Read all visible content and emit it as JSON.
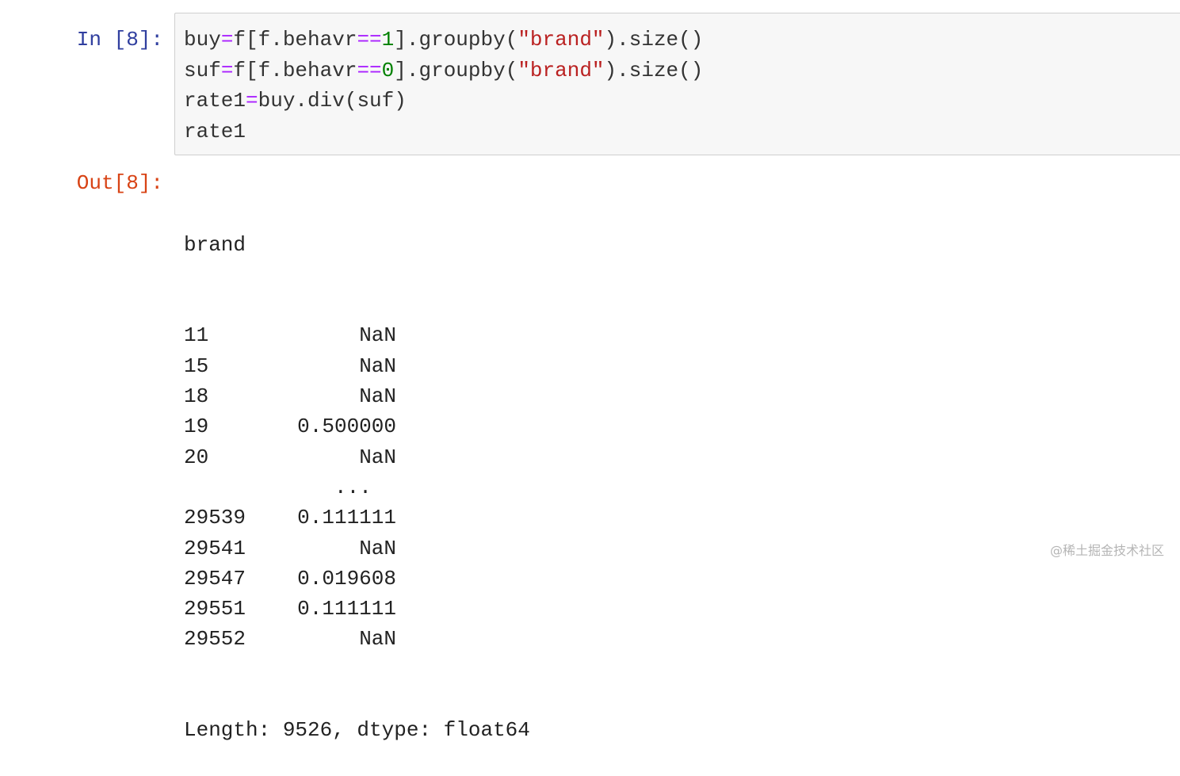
{
  "input": {
    "prompt": "In  [8]:",
    "lines": [
      [
        {
          "t": "buy",
          "c": ""
        },
        {
          "t": "=",
          "c": "op"
        },
        {
          "t": "f[f.behavr",
          "c": ""
        },
        {
          "t": "==",
          "c": "op"
        },
        {
          "t": "1",
          "c": "num"
        },
        {
          "t": "].groupby(",
          "c": ""
        },
        {
          "t": "\"brand\"",
          "c": "str"
        },
        {
          "t": ").size()",
          "c": ""
        }
      ],
      [
        {
          "t": "suf",
          "c": ""
        },
        {
          "t": "=",
          "c": "op"
        },
        {
          "t": "f[f.behavr",
          "c": ""
        },
        {
          "t": "==",
          "c": "op"
        },
        {
          "t": "0",
          "c": "num"
        },
        {
          "t": "].groupby(",
          "c": ""
        },
        {
          "t": "\"brand\"",
          "c": "str"
        },
        {
          "t": ").size()",
          "c": ""
        }
      ],
      [
        {
          "t": "rate1",
          "c": ""
        },
        {
          "t": "=",
          "c": "op"
        },
        {
          "t": "buy.div(suf)",
          "c": ""
        }
      ],
      [
        {
          "t": "rate1",
          "c": ""
        }
      ]
    ]
  },
  "output": {
    "prompt": "Out[8]:",
    "index_name": "brand",
    "rows": [
      {
        "index": "11",
        "value": "NaN"
      },
      {
        "index": "15",
        "value": "NaN"
      },
      {
        "index": "18",
        "value": "NaN"
      },
      {
        "index": "19",
        "value": "0.500000"
      },
      {
        "index": "20",
        "value": "NaN"
      },
      {
        "index": "",
        "value": "...  "
      },
      {
        "index": "29539",
        "value": "0.111111"
      },
      {
        "index": "29541",
        "value": "NaN"
      },
      {
        "index": "29547",
        "value": "0.019608"
      },
      {
        "index": "29551",
        "value": "0.111111"
      },
      {
        "index": "29552",
        "value": "NaN"
      }
    ],
    "footer": "Length: 9526, dtype: float64"
  },
  "watermark": "@稀土掘金技术社区",
  "colors": {
    "in_prompt": "#303f9f",
    "out_prompt": "#d84315",
    "operator": "#aa22ff",
    "number": "#008000",
    "string": "#ba2121"
  }
}
